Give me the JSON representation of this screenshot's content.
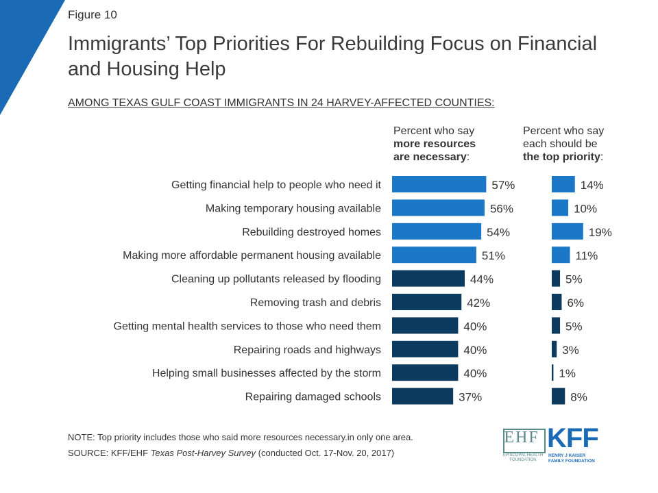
{
  "header": {
    "figure_label": "Figure 10",
    "title": "Immigrants’ Top Priorities For Rebuilding Focus on Financial and Housing Help",
    "subtitle": "AMONG TEXAS GULF COAST IMMIGRANTS IN 24 HARVEY-AFFECTED COUNTIES:"
  },
  "column_headers": {
    "resources_line1": "Percent who say",
    "resources_line2_bold": "more resources",
    "resources_line3_bold": "are necessary",
    "resources_line3_tail": ":",
    "priority_line1": "Percent who say",
    "priority_line2": "each should be",
    "priority_line3_bold": "the top priority",
    "priority_line3_tail": ":"
  },
  "colors": {
    "light_blue": "#1b77c8",
    "dark_navy": "#0d3a5f",
    "corner_blue": "#1b6ab5",
    "label_text": "#333333"
  },
  "chart_data": [
    {
      "type": "bar",
      "orientation": "horizontal",
      "title": "Percent who say more resources are necessary:",
      "categories": [
        "Getting financial help to people who need it",
        "Making temporary housing available",
        "Rebuilding destroyed homes",
        "Making more affordable permanent housing available",
        "Cleaning up pollutants released by flooding",
        "Removing trash and debris",
        "Getting mental health services to those who need them",
        "Repairing roads and highways",
        "Helping small businesses affected by the storm",
        "Repairing damaged schools"
      ],
      "values": [
        57,
        56,
        54,
        51,
        44,
        42,
        40,
        40,
        40,
        37
      ],
      "labels": [
        "57%",
        "56%",
        "54%",
        "51%",
        "44%",
        "42%",
        "40%",
        "40%",
        "40%",
        "37%"
      ],
      "highlight_count": 4,
      "xlim": [
        0,
        100
      ]
    },
    {
      "type": "bar",
      "orientation": "horizontal",
      "title": "Percent who say each should be the top priority:",
      "categories": [
        "Getting financial help to people who need it",
        "Making temporary housing available",
        "Rebuilding destroyed homes",
        "Making more affordable permanent housing available",
        "Cleaning up pollutants released by flooding",
        "Removing trash and debris",
        "Getting mental health services to those who need them",
        "Repairing roads and highways",
        "Helping small businesses affected by the storm",
        "Repairing damaged schools"
      ],
      "values": [
        14,
        10,
        19,
        11,
        5,
        6,
        5,
        3,
        1,
        8
      ],
      "labels": [
        "14%",
        "10%",
        "19%",
        "11%",
        "5%",
        "6%",
        "5%",
        "3%",
        "1%",
        "8%"
      ],
      "highlight_count": 4,
      "xlim": [
        0,
        100
      ]
    }
  ],
  "footer": {
    "note": "NOTE: Top priority includes those who said more resources necessary.in only one area.",
    "source_prefix": "SOURCE: KFF/EHF ",
    "source_italic": "Texas Post-Harvey Survey",
    "source_suffix": " (conducted Oct. 17-Nov. 20, 2017)"
  },
  "logos": {
    "ehf_mark": "EHF",
    "ehf_caption_1": "EPISCOPAL HEALTH",
    "ehf_caption_2": "FOUNDATION",
    "kff_mark": "KFF",
    "kff_caption_1": "HENRY J KAISER",
    "kff_caption_2": "FAMILY FOUNDATION"
  }
}
